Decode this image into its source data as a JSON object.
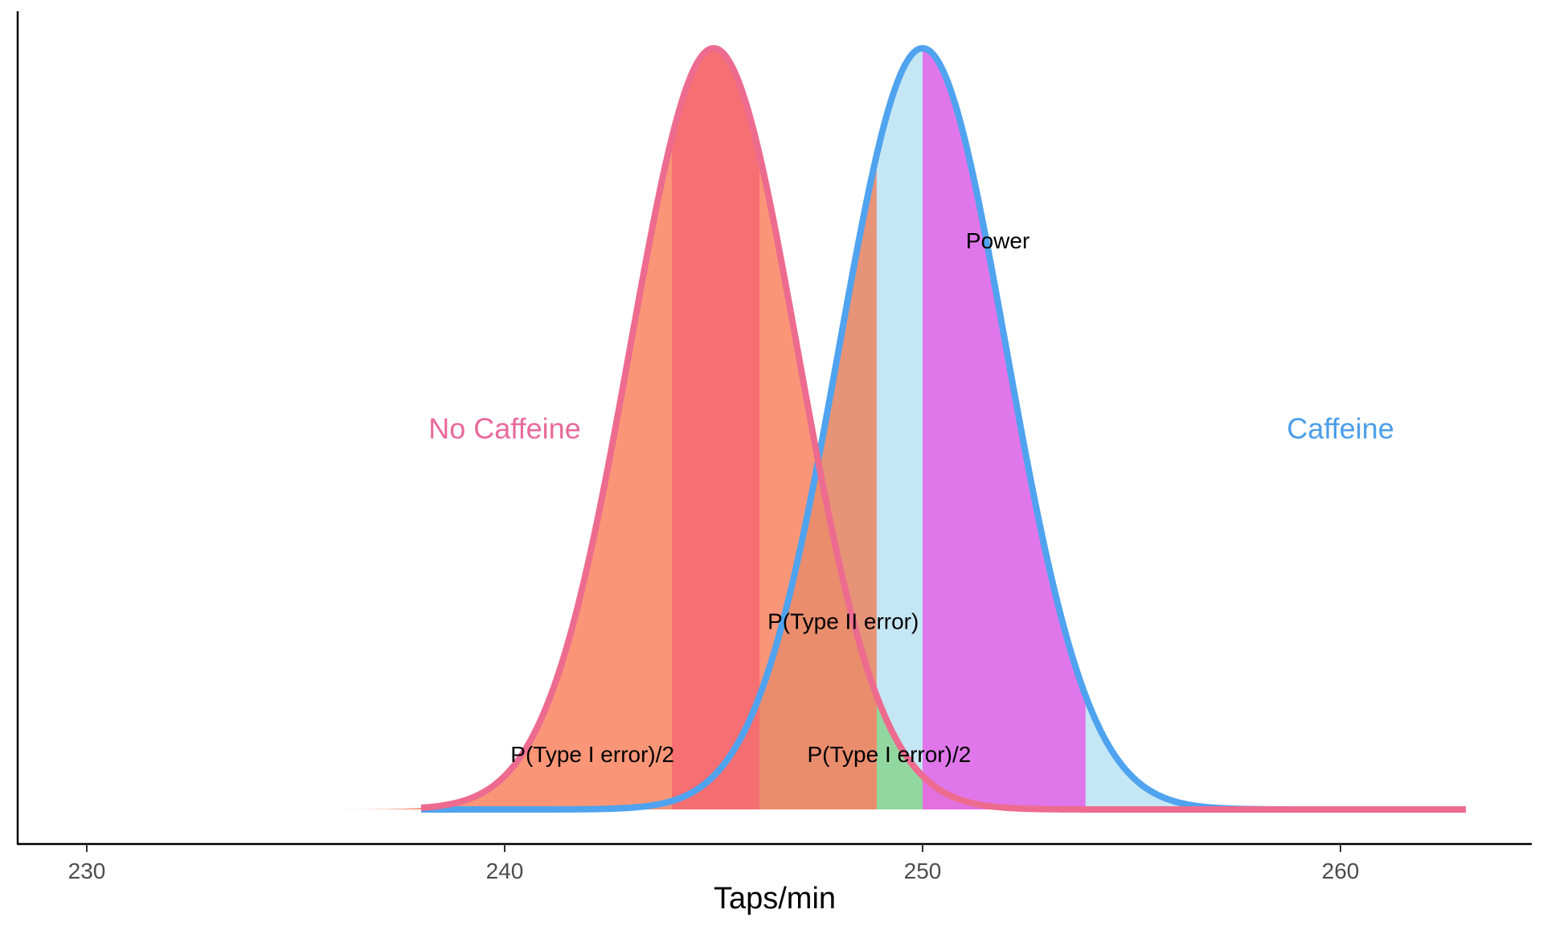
{
  "chart_data": {
    "type": "area",
    "title": "",
    "xlabel": "Taps/min",
    "ylabel": "",
    "xlim": [
      228.3,
      264.6
    ],
    "x_ticks": [
      230,
      240,
      250,
      260
    ],
    "x_tick_labels": [
      "230",
      "240",
      "250",
      "260"
    ],
    "grid": false,
    "series": [
      {
        "name": "No Caffeine",
        "distribution": "normal",
        "mean": 245,
        "sd": 2.0,
        "x_range": [
          238,
          263
        ],
        "color": "#ed6b8f",
        "fill": "#f9845f"
      },
      {
        "name": "Caffeine",
        "distribution": "normal",
        "mean": 250,
        "sd": 2.0,
        "x_range": [
          238,
          263
        ],
        "color": "#4fa3ef",
        "fill": "#bfe3f3"
      }
    ],
    "regions": [
      {
        "label": "P(Type I error)/2",
        "curve": "No Caffeine",
        "from": 244,
        "to": 246.1,
        "color": "#f56b72"
      },
      {
        "label": "P(Type I error)/2",
        "curve": "No Caffeine",
        "from": 248.9,
        "to": 250,
        "color": "#8bdca4"
      },
      {
        "label": "P(Type II error)",
        "curve": "Caffeine",
        "from": 246.1,
        "to": 248.9,
        "color": "#e88c6c"
      },
      {
        "label": "Power",
        "curve": "Caffeine",
        "from": 250,
        "to": 253.9,
        "color": "#e16ee8"
      }
    ],
    "annotations": [
      {
        "text": "No Caffeine",
        "x": 240,
        "y_frac": 0.5,
        "color": "#e96a99"
      },
      {
        "text": "Caffeine",
        "x": 260,
        "y_frac": 0.5,
        "color": "#4b9ee9"
      },
      {
        "text": "Power",
        "x": 251.8,
        "y_frac": 0.75,
        "color": "#000000"
      },
      {
        "text": "P(Type II error)",
        "x": 248.1,
        "y_frac": 0.25,
        "color": "#000000"
      },
      {
        "text": "P(Type I error)/2",
        "x": 242.1,
        "y_frac": 0.075,
        "color": "#000000"
      },
      {
        "text": "P(Type I error)/2",
        "x": 249.2,
        "y_frac": 0.075,
        "color": "#000000"
      }
    ]
  }
}
